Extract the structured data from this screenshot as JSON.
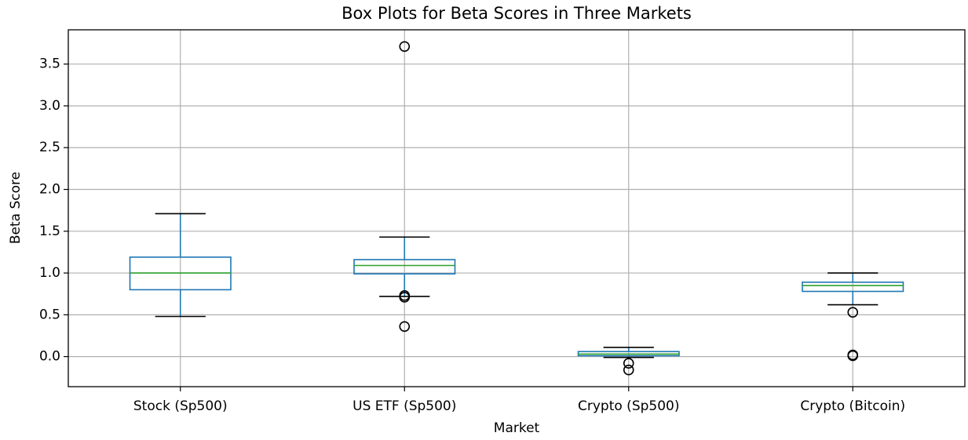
{
  "chart_data": {
    "type": "box",
    "title": "Box Plots for Beta Scores in Three Markets",
    "x_label": "Market",
    "y_label": "Beta Score",
    "categories": [
      "Stock (Sp500)",
      "US ETF (Sp500)",
      "Crypto (Sp500)",
      "Crypto (Bitcoin)"
    ],
    "boxes": [
      {
        "whisker_low": 0.48,
        "q1": 0.8,
        "median": 1.0,
        "q3": 1.19,
        "whisker_high": 1.71,
        "outliers": []
      },
      {
        "whisker_low": 0.72,
        "q1": 0.99,
        "median": 1.09,
        "q3": 1.16,
        "whisker_high": 1.43,
        "outliers": [
          3.71,
          0.73,
          0.71,
          0.36
        ]
      },
      {
        "whisker_low": -0.01,
        "q1": 0.01,
        "median": 0.03,
        "q3": 0.06,
        "whisker_high": 0.11,
        "outliers": [
          -0.08,
          -0.16
        ]
      },
      {
        "whisker_low": 0.62,
        "q1": 0.78,
        "median": 0.85,
        "q3": 0.89,
        "whisker_high": 1.0,
        "outliers": [
          0.53,
          0.02,
          0.01
        ]
      }
    ],
    "box_color": "#1f77b4",
    "median_color": "#2ca02c",
    "cap_color": "#000000",
    "outlier_color": "#000000",
    "ylim": [
      -0.36,
      3.91
    ],
    "yticks": [
      {
        "value": 0,
        "label": "0.0"
      },
      0.5,
      {
        "value": 1,
        "label": "1.0"
      },
      1.5,
      {
        "value": 2,
        "label": "2.0"
      },
      2.5,
      {
        "value": 3,
        "label": "3.0"
      },
      3.5
    ],
    "grid": true
  }
}
